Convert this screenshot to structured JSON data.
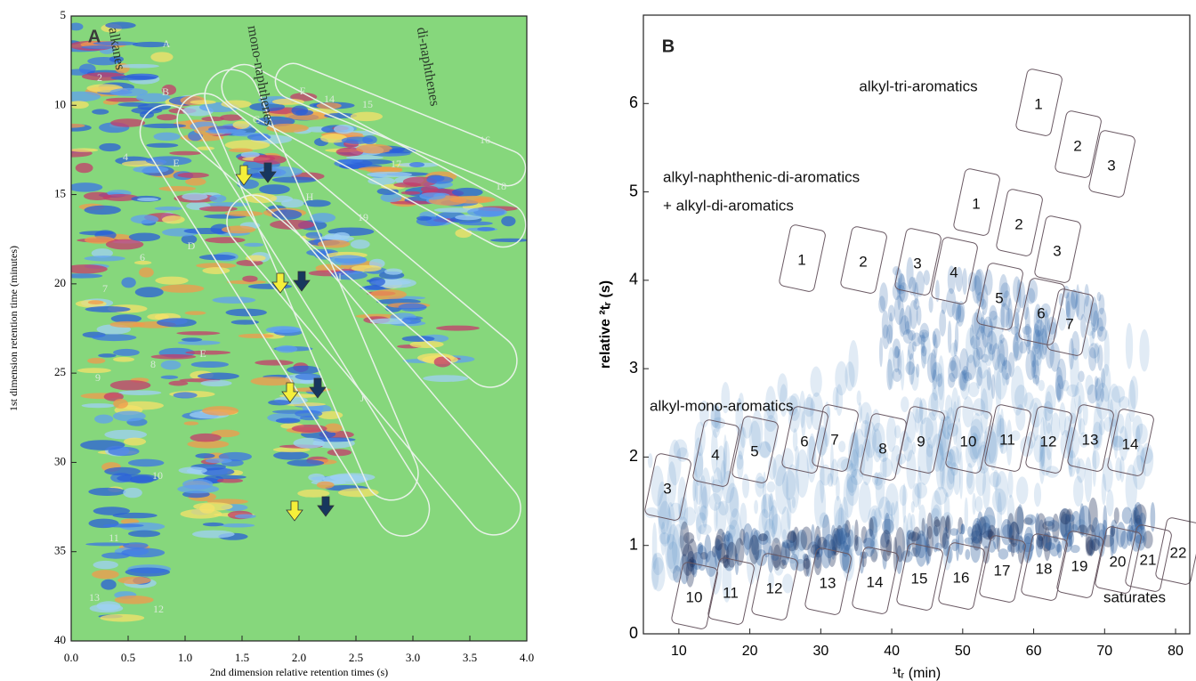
{
  "chart_data": [
    {
      "type": "heatmap",
      "panel_label": "A",
      "x_label": "2nd dimension relative retention times (s)",
      "y_label": "1st dimension retention time (minutes)",
      "xlim": [
        0,
        4
      ],
      "xticks": [
        {
          "value": 0,
          "label": "0.0"
        },
        0.5,
        {
          "value": 1,
          "label": "1.0"
        },
        1.5,
        {
          "value": 2,
          "label": "2.0"
        },
        2.5,
        {
          "value": 3,
          "label": "3.0"
        },
        3.5,
        {
          "value": 4,
          "label": "4.0"
        }
      ],
      "ylim": [
        5,
        40
      ],
      "yticks": [
        5,
        10,
        15,
        20,
        25,
        30,
        35,
        40
      ],
      "y_inverted": true,
      "annotations": [
        "alkanes",
        "mono-naphthenes",
        "di-naphthenes",
        "A",
        "B",
        "C",
        "E",
        "F",
        "H",
        "D",
        "I",
        "E",
        "J",
        "2",
        "4",
        "6",
        "7",
        "8",
        "9",
        "10",
        "11",
        "13",
        "12",
        "14",
        "15",
        "16",
        "17",
        "18",
        "19"
      ]
    },
    {
      "type": "heatmap",
      "panel_label": "B",
      "x_label": "¹tᵣ (min)",
      "y_label": "relative ²tᵣ (s)",
      "xlim": [
        5,
        82
      ],
      "xticks": [
        10,
        20,
        30,
        40,
        50,
        60,
        70,
        80
      ],
      "ylim": [
        0,
        7
      ],
      "yticks": [
        0,
        1,
        2,
        3,
        4,
        5,
        6
      ],
      "annotations": [
        "alkyl-tri-aromatics",
        "alkyl-naphthenic-di-aromatics",
        "+ alkyl-di-aromatics",
        "alkyl-mono-aromatics",
        "saturates",
        "1",
        "2",
        "3",
        "1",
        "2",
        "3",
        "1",
        "2",
        "3",
        "4",
        "5",
        "6",
        "7",
        "3",
        "4",
        "5",
        "6",
        "7",
        "8",
        "9",
        "10",
        "11",
        "12",
        "13",
        "14",
        "10",
        "11",
        "12",
        "13",
        "14",
        "15",
        "16",
        "17",
        "18",
        "19",
        "20",
        "21",
        "22"
      ]
    }
  ]
}
